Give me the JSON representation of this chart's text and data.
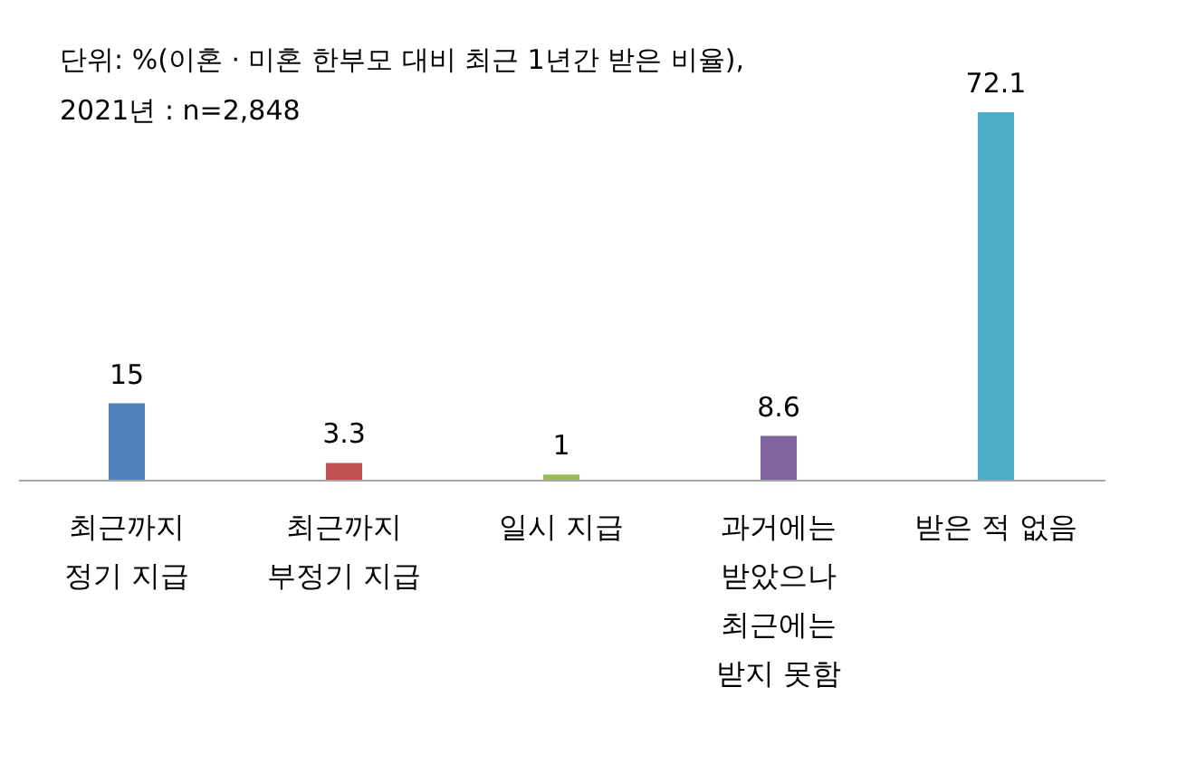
{
  "chart_data": {
    "type": "bar",
    "title": "단위: %(이혼 · 미혼 한부모 대비 최근 1년간 받은 비율),",
    "subtitle": "2021년 : n=2,848",
    "categories": [
      "최근까지\n정기 지급",
      "최근까지\n부정기 지급",
      "일시 지급",
      "과거에는\n받았으나\n최근에는\n받지 못함",
      "받은 적 없음"
    ],
    "values": [
      15,
      3.3,
      1,
      8.6,
      72.1
    ],
    "colors": [
      "#4f81bd",
      "#c0504d",
      "#9bbb59",
      "#8064a2",
      "#4bacc6"
    ],
    "data_labels": true,
    "tick_labels": "x"
  }
}
